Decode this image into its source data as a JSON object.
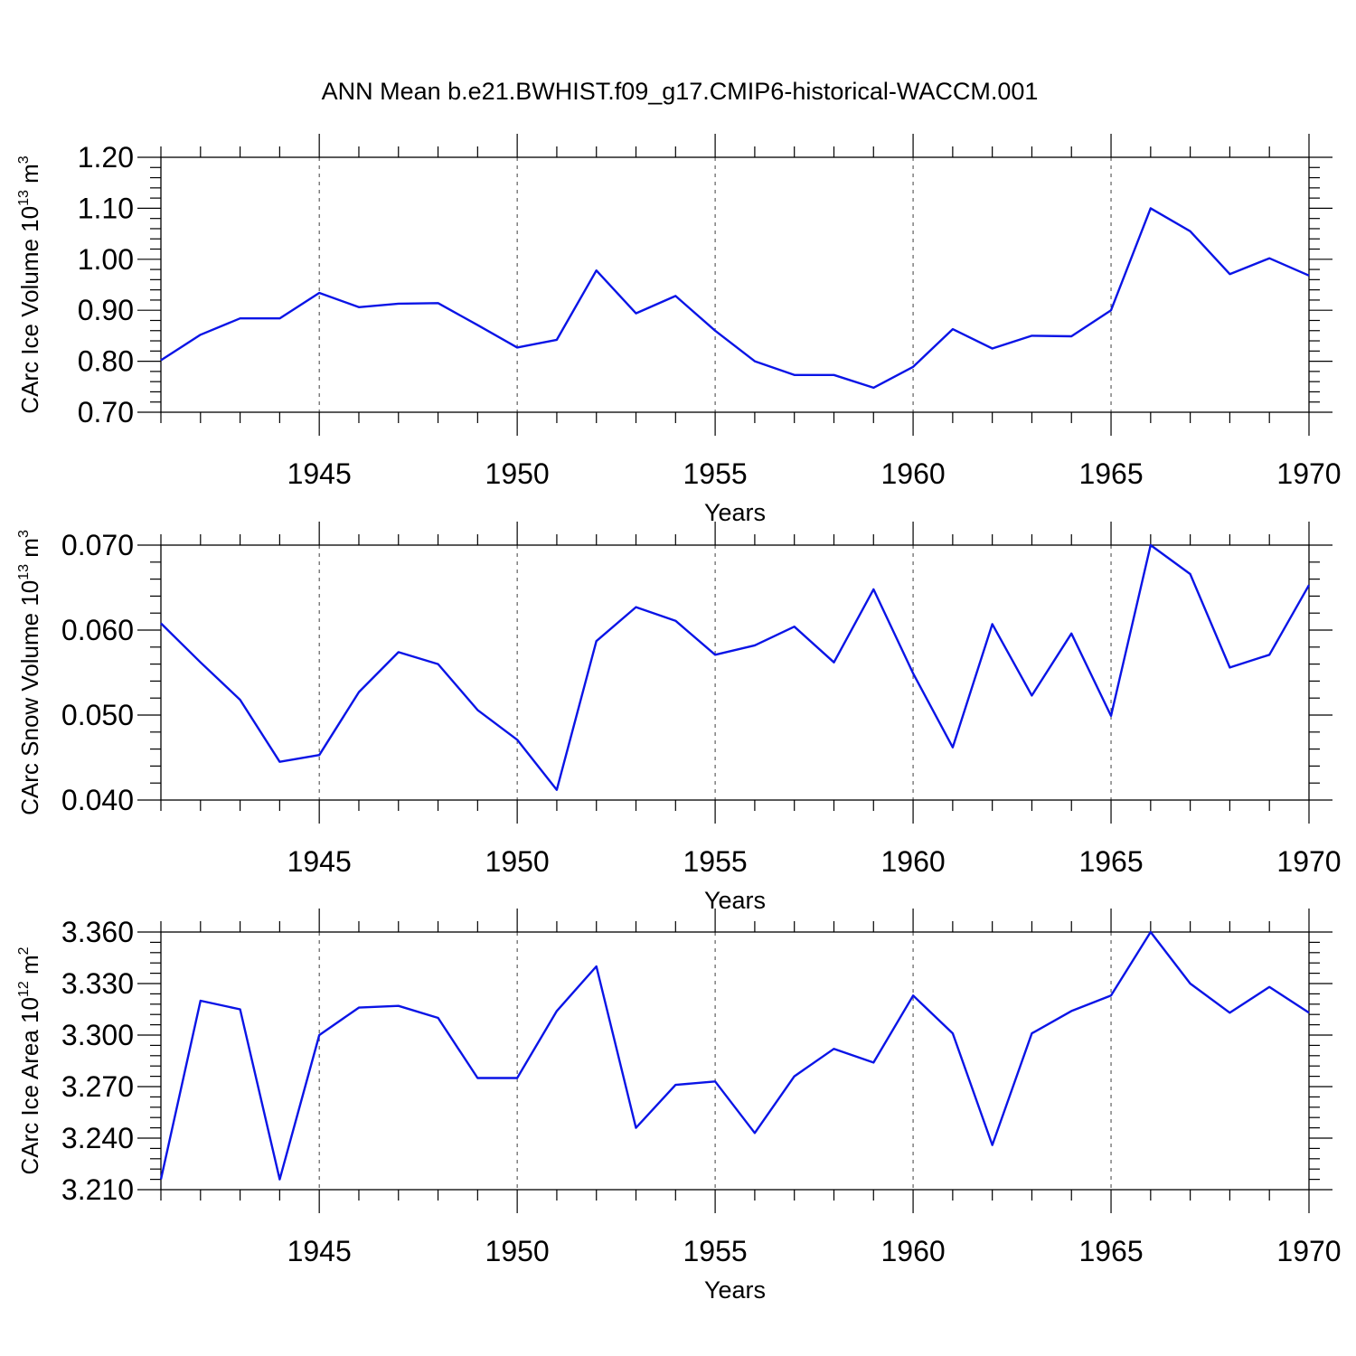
{
  "title": "ANN Mean b.e21.BWHIST.f09_g17.CMIP6-historical-WACCM.001",
  "colors": {
    "line": "#0a14e6",
    "axis": "#000000",
    "background": "#ffffff"
  },
  "chart_data": [
    {
      "type": "line",
      "ylabel": {
        "main": "CArc Ice Volume 10",
        "sup": "13",
        "unit": " m",
        "unit_sup": "3"
      },
      "xlabel": "Years",
      "xlim": [
        1941,
        1970
      ],
      "ylim": [
        0.7,
        1.2
      ],
      "xticks": [
        1945,
        1950,
        1955,
        1960,
        1965,
        1970
      ],
      "yticks": [
        0.7,
        0.8,
        0.9,
        1.0,
        1.1,
        1.2
      ],
      "ytick_labels": [
        "0.70",
        "0.80",
        "0.90",
        "1.00",
        "1.10",
        "1.20"
      ],
      "grid": "x-dashed",
      "x": [
        1941,
        1942,
        1943,
        1944,
        1945,
        1946,
        1947,
        1948,
        1949,
        1950,
        1951,
        1952,
        1953,
        1954,
        1955,
        1956,
        1957,
        1958,
        1959,
        1960,
        1961,
        1962,
        1963,
        1964,
        1965,
        1966,
        1967,
        1968,
        1969,
        1970
      ],
      "values": [
        0.802,
        0.852,
        0.884,
        0.884,
        0.934,
        0.906,
        0.913,
        0.914,
        0.871,
        0.827,
        0.842,
        0.978,
        0.894,
        0.928,
        0.86,
        0.8,
        0.773,
        0.773,
        0.748,
        0.789,
        0.863,
        0.825,
        0.85,
        0.849,
        0.9,
        1.1,
        1.055,
        0.971,
        1.002,
        0.968
      ]
    },
    {
      "type": "line",
      "ylabel": {
        "main": "CArc Snow Volume 10",
        "sup": "13",
        "unit": " m",
        "unit_sup": "3"
      },
      "xlabel": "Years",
      "xlim": [
        1941,
        1970
      ],
      "ylim": [
        0.04,
        0.07
      ],
      "xticks": [
        1945,
        1950,
        1955,
        1960,
        1965,
        1970
      ],
      "yticks": [
        0.04,
        0.05,
        0.06,
        0.07
      ],
      "ytick_labels": [
        "0.040",
        "0.050",
        "0.060",
        "0.070"
      ],
      "grid": "x-dashed",
      "x": [
        1941,
        1942,
        1943,
        1944,
        1945,
        1946,
        1947,
        1948,
        1949,
        1950,
        1951,
        1952,
        1953,
        1954,
        1955,
        1956,
        1957,
        1958,
        1959,
        1960,
        1961,
        1962,
        1963,
        1964,
        1965,
        1966,
        1967,
        1968,
        1969,
        1970
      ],
      "values": [
        0.0608,
        0.0562,
        0.0518,
        0.0445,
        0.0453,
        0.0527,
        0.0574,
        0.056,
        0.0506,
        0.0471,
        0.0412,
        0.0587,
        0.0627,
        0.0611,
        0.0571,
        0.0582,
        0.0604,
        0.0562,
        0.0648,
        0.0549,
        0.0462,
        0.0607,
        0.0523,
        0.0596,
        0.0499,
        0.07,
        0.0666,
        0.0556,
        0.0571,
        0.0653
      ]
    },
    {
      "type": "line",
      "ylabel": {
        "main": "CArc Ice Area 10",
        "sup": "12",
        "unit": " m",
        "unit_sup": "2"
      },
      "xlabel": "Years",
      "xlim": [
        1941,
        1970
      ],
      "ylim": [
        3.21,
        3.36
      ],
      "xticks": [
        1945,
        1950,
        1955,
        1960,
        1965,
        1970
      ],
      "yticks": [
        3.21,
        3.24,
        3.27,
        3.3,
        3.33,
        3.36
      ],
      "ytick_labels": [
        "3.210",
        "3.240",
        "3.270",
        "3.300",
        "3.330",
        "3.360"
      ],
      "grid": "x-dashed",
      "x": [
        1941,
        1942,
        1943,
        1944,
        1945,
        1946,
        1947,
        1948,
        1949,
        1950,
        1951,
        1952,
        1953,
        1954,
        1955,
        1956,
        1957,
        1958,
        1959,
        1960,
        1961,
        1962,
        1963,
        1964,
        1965,
        1966,
        1967,
        1968,
        1969,
        1970
      ],
      "values": [
        3.216,
        3.32,
        3.315,
        3.216,
        3.3,
        3.316,
        3.317,
        3.31,
        3.275,
        3.275,
        3.314,
        3.34,
        3.246,
        3.271,
        3.273,
        3.243,
        3.276,
        3.292,
        3.284,
        3.323,
        3.301,
        3.236,
        3.301,
        3.314,
        3.323,
        3.36,
        3.33,
        3.313,
        3.328,
        3.313
      ]
    }
  ]
}
